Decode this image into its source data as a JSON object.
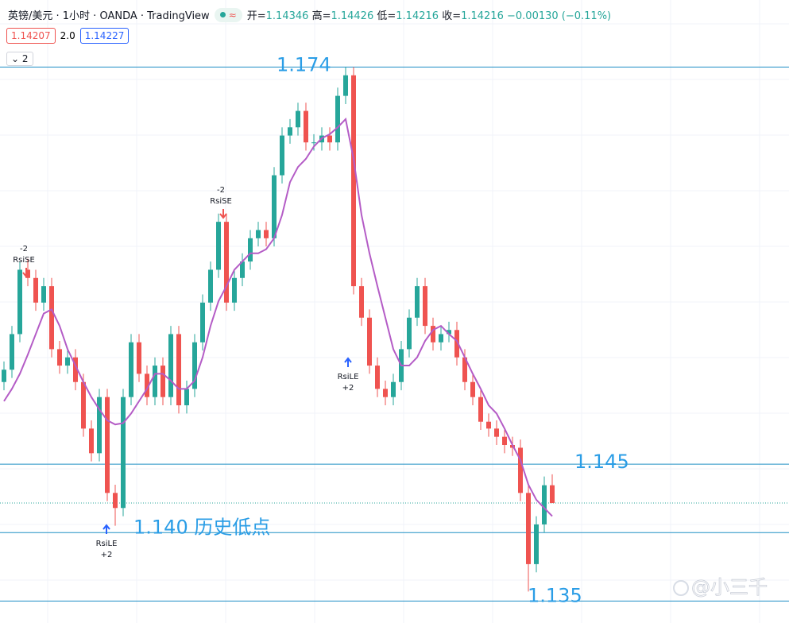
{
  "chart_data": {
    "type": "candlestick",
    "title": "英镑/美元 · 1小时 · OANDA · TradingView",
    "legend": {
      "open_label": "开=",
      "open": 1.14346,
      "high_label": "高=",
      "high": 1.14426,
      "low_label": "低=",
      "low": 1.14216,
      "close_label": "收=",
      "close": 1.14216,
      "change": {
        "value": -0.0013,
        "label": "−0.00130"
      },
      "change_pct": {
        "value": -0.11,
        "label": "(−0.11%)"
      }
    },
    "bid": 1.14207,
    "spread": {
      "value": 2,
      "label": "2.0"
    },
    "ask": 1.14227,
    "indicator_count": 2,
    "up_color": "#26a69a",
    "down_color": "#ef5350",
    "ylim": [
      1.1334,
      1.1789
    ],
    "ohlc": {
      "open": [
        1.151,
        1.1519,
        1.1545,
        1.1592,
        1.1586,
        1.1568,
        1.158,
        1.1534,
        1.1522,
        1.1528,
        1.151,
        1.1476,
        1.1458,
        1.1499,
        1.1429,
        1.1418,
        1.1499,
        1.1539,
        1.1516,
        1.1499,
        1.1522,
        1.1499,
        1.1545,
        1.1493,
        1.1505,
        1.1539,
        1.1568,
        1.1592,
        1.1627,
        1.1568,
        1.1586,
        1.1598,
        1.1615,
        1.1621,
        1.1615,
        1.1661,
        1.169,
        1.1696,
        1.1708,
        1.1685,
        1.1685,
        1.169,
        1.1685,
        1.1719,
        1.1734,
        1.158,
        1.1557,
        1.1522,
        1.1505,
        1.1499,
        1.151,
        1.1534,
        1.1557,
        1.158,
        1.1551,
        1.1539,
        1.1545,
        1.1548,
        1.1528,
        1.151,
        1.1499,
        1.1481,
        1.1476,
        1.147,
        1.1464,
        1.1462,
        1.1429,
        1.1377,
        1.1406,
        1.14346
      ],
      "high": [
        1.1525,
        1.1551,
        1.1598,
        1.16,
        1.1592,
        1.1586,
        1.1586,
        1.154,
        1.1534,
        1.1534,
        1.1516,
        1.1482,
        1.1505,
        1.1505,
        1.1435,
        1.1505,
        1.1545,
        1.1545,
        1.1522,
        1.1528,
        1.1528,
        1.1551,
        1.1551,
        1.1511,
        1.1545,
        1.1574,
        1.1598,
        1.1633,
        1.1633,
        1.1592,
        1.1604,
        1.1621,
        1.1627,
        1.1627,
        1.1667,
        1.1696,
        1.1702,
        1.1714,
        1.1714,
        1.1691,
        1.1696,
        1.1696,
        1.1725,
        1.174,
        1.174,
        1.1586,
        1.1563,
        1.1528,
        1.1511,
        1.1516,
        1.154,
        1.1563,
        1.1586,
        1.1586,
        1.1557,
        1.1551,
        1.1554,
        1.1554,
        1.1534,
        1.1516,
        1.1505,
        1.1487,
        1.1482,
        1.1476,
        1.147,
        1.1468,
        1.1435,
        1.1412,
        1.1441,
        1.14426
      ],
      "low": [
        1.1504,
        1.1513,
        1.1539,
        1.158,
        1.1562,
        1.1562,
        1.1528,
        1.1516,
        1.1516,
        1.1504,
        1.147,
        1.1452,
        1.1452,
        1.1423,
        1.1405,
        1.1412,
        1.1493,
        1.151,
        1.1493,
        1.1493,
        1.1493,
        1.1493,
        1.1487,
        1.1487,
        1.1499,
        1.1533,
        1.1562,
        1.1586,
        1.1562,
        1.1562,
        1.158,
        1.1592,
        1.1609,
        1.1609,
        1.1609,
        1.1655,
        1.1684,
        1.169,
        1.1679,
        1.1679,
        1.1679,
        1.1679,
        1.1679,
        1.1713,
        1.1574,
        1.1551,
        1.1516,
        1.1499,
        1.1493,
        1.1493,
        1.1504,
        1.1528,
        1.1551,
        1.1545,
        1.1533,
        1.1533,
        1.1539,
        1.1522,
        1.1504,
        1.1493,
        1.1475,
        1.147,
        1.1464,
        1.1458,
        1.1456,
        1.1423,
        1.1357,
        1.1371,
        1.14,
        1.14216
      ],
      "close": [
        1.1519,
        1.1545,
        1.1592,
        1.1586,
        1.1568,
        1.158,
        1.1534,
        1.1522,
        1.1528,
        1.151,
        1.1476,
        1.1458,
        1.1499,
        1.1429,
        1.1418,
        1.1499,
        1.1539,
        1.1516,
        1.1499,
        1.1522,
        1.1499,
        1.1545,
        1.1493,
        1.1505,
        1.1539,
        1.1568,
        1.1592,
        1.1627,
        1.1568,
        1.1586,
        1.1598,
        1.1615,
        1.1621,
        1.1615,
        1.1661,
        1.169,
        1.1696,
        1.1708,
        1.1685,
        1.1685,
        1.169,
        1.1685,
        1.1719,
        1.1734,
        1.158,
        1.1557,
        1.1522,
        1.1505,
        1.1499,
        1.151,
        1.1534,
        1.1557,
        1.158,
        1.1551,
        1.1539,
        1.1545,
        1.1548,
        1.1528,
        1.151,
        1.1499,
        1.1481,
        1.1476,
        1.147,
        1.1464,
        1.1462,
        1.1429,
        1.1377,
        1.1406,
        1.14346,
        1.14216
      ]
    },
    "ma": {
      "color": "#b45cc6",
      "values": [
        1.1496,
        1.1505,
        1.1516,
        1.153,
        1.1545,
        1.156,
        1.1563,
        1.1551,
        1.1534,
        1.1522,
        1.151,
        1.1499,
        1.149,
        1.1482,
        1.1479,
        1.148,
        1.1487,
        1.1496,
        1.1505,
        1.1516,
        1.1516,
        1.1511,
        1.1505,
        1.1505,
        1.1511,
        1.1528,
        1.1551,
        1.1569,
        1.158,
        1.1592,
        1.1598,
        1.1604,
        1.1604,
        1.1607,
        1.1615,
        1.1632,
        1.1656,
        1.1667,
        1.1673,
        1.1682,
        1.1688,
        1.1691,
        1.1696,
        1.1702,
        1.1673,
        1.1632,
        1.1604,
        1.158,
        1.1557,
        1.1534,
        1.1522,
        1.1522,
        1.1528,
        1.154,
        1.1548,
        1.1551,
        1.1545,
        1.154,
        1.1528,
        1.1516,
        1.1505,
        1.1493,
        1.1487,
        1.1476,
        1.1464,
        1.1453,
        1.1435,
        1.1424,
        1.1418,
        1.1412
      ]
    },
    "levels": [
      1.174,
      1.145,
      {
        "value": 1.14,
        "label": "1.140 历史低点"
      },
      1.135
    ],
    "level_color": "#1f8fc4",
    "level_text_color": "#2a9de6",
    "signals": [
      {
        "label": "RsiSE",
        "qty": -2
      },
      {
        "label": "RsiSE",
        "qty": -2
      },
      {
        "label": "RsiLE",
        "qty": {
          "value": 2,
          "label": "+2"
        }
      },
      {
        "label": "RsiLE",
        "qty": {
          "value": 2,
          "label": "+2"
        }
      }
    ],
    "watermark": "@小三千"
  }
}
